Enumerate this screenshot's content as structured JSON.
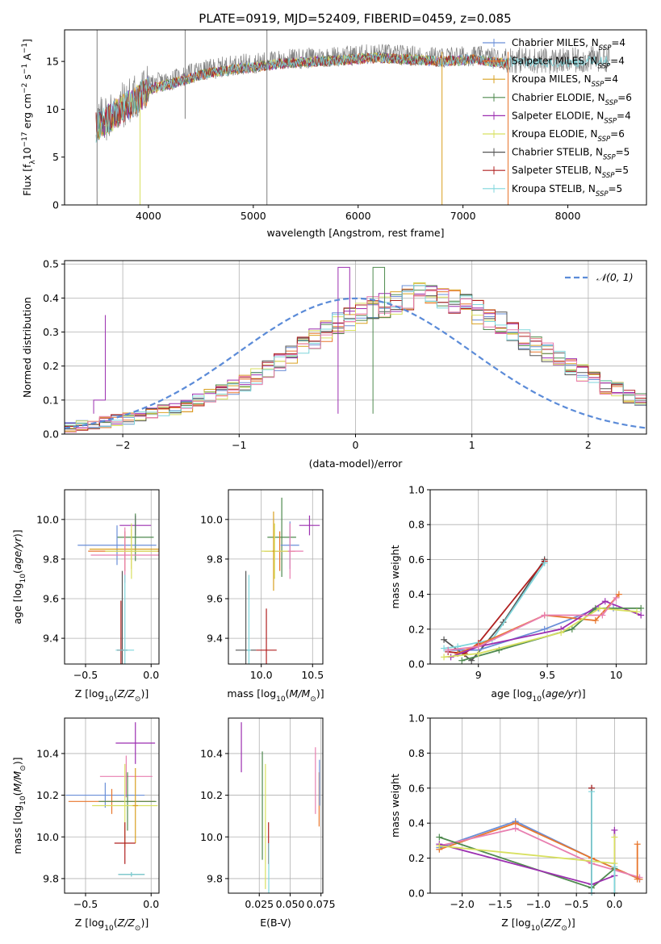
{
  "figure": {
    "title": "PLATE=0919, MJD=52409, FIBERID=0459, z=0.085"
  },
  "chart_data": [
    {
      "id": "spectrum",
      "type": "line",
      "xlabel": "wavelength [Angstrom, rest frame]",
      "ylabel": "Flux [f_λ 10^−17 erg cm^−2 s^−1 A^−1]",
      "xlim": [
        3200,
        8750
      ],
      "ylim": [
        0,
        18.3
      ],
      "xticks": [
        4000,
        5000,
        6000,
        7000,
        8000
      ],
      "yticks": [
        0,
        5,
        10,
        15
      ],
      "grid": false,
      "legend_position": "right",
      "legend": [
        {
          "label": "Chabrier MILES, N_SSP=4",
          "color": "#6a8fd8"
        },
        {
          "label": "Salpeter MILES, N_SSP=4",
          "color": "#e8762c"
        },
        {
          "label": "Kroupa MILES, N_SSP=4",
          "color": "#d9a020"
        },
        {
          "label": "Chabrier ELODIE, N_SSP=6",
          "color": "#4f8a4f"
        },
        {
          "label": "Salpeter ELODIE, N_SSP=4",
          "color": "#9c2fb0"
        },
        {
          "label": "Kroupa ELODIE, N_SSP=6",
          "color": "#d8e060"
        },
        {
          "label": "Chabrier STELIB, N_SSP=5",
          "color": "#555555"
        },
        {
          "label": "Salpeter STELIB, N_SSP=5",
          "color": "#b02020"
        },
        {
          "label": "Kroupa STELIB, N_SSP=5",
          "color": "#7fd6dc"
        }
      ],
      "data_color": "#808080",
      "continuum": [
        {
          "x": 3500,
          "y": 8.5
        },
        {
          "x": 3700,
          "y": 10.0
        },
        {
          "x": 3900,
          "y": 11.5
        },
        {
          "x": 4000,
          "y": 12.5
        },
        {
          "x": 4200,
          "y": 13.0
        },
        {
          "x": 4500,
          "y": 14.0
        },
        {
          "x": 4800,
          "y": 14.6
        },
        {
          "x": 5000,
          "y": 14.8
        },
        {
          "x": 5300,
          "y": 15.2
        },
        {
          "x": 5600,
          "y": 15.4
        },
        {
          "x": 5900,
          "y": 15.6
        },
        {
          "x": 6200,
          "y": 15.8
        },
        {
          "x": 6500,
          "y": 15.6
        },
        {
          "x": 6800,
          "y": 15.4
        },
        {
          "x": 7100,
          "y": 15.6
        },
        {
          "x": 7400,
          "y": 15.2
        },
        {
          "x": 7700,
          "y": 15.1
        },
        {
          "x": 8000,
          "y": 15.0
        },
        {
          "x": 8300,
          "y": 15.3
        }
      ],
      "data_range": [
        3500,
        8400
      ],
      "model_range": [
        3500,
        7430
      ],
      "model_extra_range": [
        7430,
        8400
      ],
      "spikes": [
        {
          "x": 3510,
          "ymin": 0,
          "ymax": 18.3
        },
        {
          "x": 3920,
          "ymin": 0,
          "ymax": 10
        },
        {
          "x": 4350,
          "ymin": 9,
          "ymax": 18.3
        },
        {
          "x": 5130,
          "ymin": 0,
          "ymax": 18.3
        },
        {
          "x": 6800,
          "ymin": 0,
          "ymax": 16
        },
        {
          "x": 7430,
          "ymin": 0,
          "ymax": 16
        }
      ]
    },
    {
      "id": "residuals",
      "type": "step",
      "xlabel": "(data-model)/error",
      "ylabel": "Normed distribution",
      "xlim": [
        -2.5,
        2.5
      ],
      "ylim": [
        0,
        0.51
      ],
      "xticks": [
        -2,
        -1,
        0,
        1,
        2
      ],
      "yticks": [
        0.0,
        0.1,
        0.2,
        0.3,
        0.4,
        0.5
      ],
      "grid": true,
      "legend": [
        {
          "label": "𝒩(0, 1)",
          "color": "#5b8bd8",
          "style": "dashed"
        }
      ],
      "legend_position": "upper right",
      "bin_width": 0.1,
      "bin_start": -2.5,
      "hist_base": [
        0.02,
        0.025,
        0.03,
        0.035,
        0.04,
        0.045,
        0.05,
        0.06,
        0.07,
        0.075,
        0.085,
        0.1,
        0.11,
        0.125,
        0.14,
        0.15,
        0.17,
        0.19,
        0.21,
        0.23,
        0.26,
        0.28,
        0.3,
        0.33,
        0.34,
        0.36,
        0.37,
        0.38,
        0.39,
        0.4,
        0.41,
        0.41,
        0.4,
        0.39,
        0.38,
        0.36,
        0.34,
        0.33,
        0.3,
        0.28,
        0.26,
        0.24,
        0.22,
        0.2,
        0.18,
        0.16,
        0.14,
        0.13,
        0.11,
        0.1
      ],
      "notable_peaks": [
        {
          "x": -2.2,
          "y": 0.1
        },
        {
          "x": 0.2,
          "y": 0.49
        },
        {
          "x": -0.1,
          "y": 0.49
        }
      ]
    },
    {
      "id": "age_vs_Z",
      "type": "errorbar",
      "xlabel": "Z [log10(Z/Z⊙)]",
      "ylabel": "age  [log10(age/yr)]",
      "xlim": [
        -0.66,
        0.06
      ],
      "ylim": [
        9.27,
        10.15
      ],
      "xticks": [
        -0.5,
        0.0
      ],
      "xticklabels": [
        "−0.5",
        "0.0"
      ],
      "yticks": [
        9.4,
        9.6,
        9.8,
        10.0
      ],
      "grid": true,
      "points": [
        {
          "x": -0.12,
          "y": 9.97,
          "xerr": 0.12,
          "yerr": 0.05,
          "color": "#9c2fb0"
        },
        {
          "x": -0.12,
          "y": 9.91,
          "xerr": 0.14,
          "yerr": 0.12,
          "color": "#4f8a4f"
        },
        {
          "x": -0.26,
          "y": 9.87,
          "xerr": 0.3,
          "yerr": 0.1,
          "color": "#6a8fd8"
        },
        {
          "x": -0.15,
          "y": 9.85,
          "xerr": 0.32,
          "yerr": 0.1,
          "color": "#d9a020"
        },
        {
          "x": -0.2,
          "y": 9.84,
          "xerr": 0.28,
          "yerr": 0.1,
          "color": "#e8762c"
        },
        {
          "x": -0.2,
          "y": 9.82,
          "xerr": 0.26,
          "yerr": 0.14,
          "color": "#e87fb0"
        },
        {
          "x": -0.15,
          "y": 9.84,
          "xerr": 0.2,
          "yerr": 0.14,
          "color": "#d8e060"
        },
        {
          "x": -0.22,
          "y": 9.34,
          "xerr": 0.04,
          "yerr": 0.4,
          "color": "#555555"
        },
        {
          "x": -0.23,
          "y": 9.34,
          "xerr": 0.03,
          "yerr": 0.25,
          "color": "#b02020"
        },
        {
          "x": -0.2,
          "y": 9.34,
          "xerr": 0.07,
          "yerr": 0.38,
          "color": "#7fd6dc"
        }
      ]
    },
    {
      "id": "age_vs_mass",
      "type": "errorbar",
      "xlabel": "mass [log10(M/M⊙)]",
      "ylabel": "",
      "xlim": [
        9.68,
        10.6
      ],
      "ylim": [
        9.27,
        10.15
      ],
      "xticks": [
        10.0,
        10.5
      ],
      "xticklabels": [
        "10.0",
        "10.5"
      ],
      "yticks": [
        9.4,
        9.6,
        9.8,
        10.0
      ],
      "grid": true,
      "points": [
        {
          "x": 10.47,
          "y": 9.97,
          "xerr": 0.1,
          "yerr": 0.05,
          "color": "#9c2fb0"
        },
        {
          "x": 10.2,
          "y": 9.91,
          "xerr": 0.14,
          "yerr": 0.2,
          "color": "#4f8a4f"
        },
        {
          "x": 10.28,
          "y": 9.87,
          "xerr": 0.09,
          "yerr": 0.12,
          "color": "#6a8fd8"
        },
        {
          "x": 10.18,
          "y": 9.84,
          "xerr": 0.15,
          "yerr": 0.1,
          "color": "#e8762c"
        },
        {
          "x": 10.28,
          "y": 9.84,
          "xerr": 0.13,
          "yerr": 0.14,
          "color": "#e87fb0"
        },
        {
          "x": 10.13,
          "y": 9.84,
          "xerr": 0.13,
          "yerr": 0.14,
          "color": "#d8e060"
        },
        {
          "x": 10.12,
          "y": 9.84,
          "xerr": 0.01,
          "yerr": 0.2,
          "color": "#d9a020"
        },
        {
          "x": 9.85,
          "y": 9.34,
          "xerr": 0.1,
          "yerr": 0.4,
          "color": "#555555"
        },
        {
          "x": 10.05,
          "y": 9.34,
          "xerr": 0.1,
          "yerr": 0.21,
          "color": "#b02020"
        },
        {
          "x": 9.88,
          "y": 9.34,
          "xerr": 0.02,
          "yerr": 0.38,
          "color": "#7fd6dc"
        }
      ]
    },
    {
      "id": "mass_weight_vs_age",
      "type": "line",
      "xlabel": "age  [log10(age/yr)]",
      "ylabel": "mass weight",
      "xlim": [
        8.65,
        10.22
      ],
      "ylim": [
        0,
        1.0
      ],
      "xticks": [
        9.0,
        9.5,
        10.0
      ],
      "yticks": [
        0.0,
        0.2,
        0.4,
        0.6,
        0.8,
        1.0
      ],
      "grid": true,
      "series": [
        {
          "color": "#555555",
          "x": [
            8.75,
            8.85,
            8.95,
            9.18,
            9.48
          ],
          "y": [
            0.14,
            0.08,
            0.02,
            0.24,
            0.6
          ]
        },
        {
          "color": "#b02020",
          "x": [
            8.78,
            8.9,
            9.0,
            9.48
          ],
          "y": [
            0.07,
            0.06,
            0.12,
            0.59
          ]
        },
        {
          "color": "#7fd6dc",
          "x": [
            8.75,
            8.85,
            9.1,
            9.48
          ],
          "y": [
            0.09,
            0.1,
            0.14,
            0.58
          ]
        },
        {
          "color": "#6a8fd8",
          "x": [
            8.78,
            9.0,
            9.48,
            9.87,
            9.98
          ],
          "y": [
            0.08,
            0.08,
            0.2,
            0.32,
            0.32
          ]
        },
        {
          "color": "#e8762c",
          "x": [
            8.85,
            9.0,
            9.48,
            9.85,
            10.02
          ],
          "y": [
            0.06,
            0.11,
            0.28,
            0.25,
            0.4
          ]
        },
        {
          "color": "#9c2fb0",
          "x": [
            8.8,
            9.0,
            9.6,
            9.92,
            10.18
          ],
          "y": [
            0.04,
            0.1,
            0.2,
            0.36,
            0.28
          ]
        },
        {
          "color": "#4f8a4f",
          "x": [
            8.88,
            9.15,
            9.68,
            9.85,
            10.18
          ],
          "y": [
            0.02,
            0.08,
            0.2,
            0.32,
            0.32
          ]
        },
        {
          "color": "#d8e060",
          "x": [
            8.75,
            9.0,
            9.6,
            9.88,
            10.15
          ],
          "y": [
            0.04,
            0.06,
            0.18,
            0.32,
            0.3
          ]
        },
        {
          "color": "#e87fb0",
          "x": [
            8.78,
            9.0,
            9.48,
            9.9,
            10.0
          ],
          "y": [
            0.08,
            0.1,
            0.28,
            0.28,
            0.38
          ]
        }
      ]
    },
    {
      "id": "mass_vs_Z",
      "type": "errorbar",
      "xlabel": "Z [log10(Z/Z⊙)]",
      "ylabel": "mass [log10(M/M⊙)]",
      "xlim": [
        -0.66,
        0.06
      ],
      "ylim": [
        9.73,
        10.57
      ],
      "xticks": [
        -0.5,
        0.0
      ],
      "xticklabels": [
        "−0.5",
        "0.0"
      ],
      "yticks": [
        9.8,
        10.0,
        10.2,
        10.4
      ],
      "grid": true,
      "points": [
        {
          "x": -0.12,
          "y": 10.45,
          "xerr": 0.15,
          "yerr": 0.1,
          "color": "#9c2fb0"
        },
        {
          "x": -0.19,
          "y": 10.29,
          "xerr": 0.2,
          "yerr": 0.1,
          "color": "#e87fb0"
        },
        {
          "x": -0.35,
          "y": 10.2,
          "xerr": 0.3,
          "yerr": 0.06,
          "color": "#6a8fd8"
        },
        {
          "x": -0.3,
          "y": 10.17,
          "xerr": 0.33,
          "yerr": 0.06,
          "color": "#e8762c"
        },
        {
          "x": -0.18,
          "y": 10.17,
          "xerr": 0.22,
          "yerr": 0.14,
          "color": "#4f8a4f"
        },
        {
          "x": -0.2,
          "y": 10.15,
          "xerr": 0.25,
          "yerr": 0.2,
          "color": "#d8e060"
        },
        {
          "x": -0.12,
          "y": 10.15,
          "xerr": 0.02,
          "yerr": 0.18,
          "color": "#d9a020"
        },
        {
          "x": -0.2,
          "y": 9.97,
          "xerr": 0.08,
          "yerr": 0.1,
          "color": "#b02020"
        },
        {
          "x": -0.15,
          "y": 9.82,
          "xerr": 0.1,
          "yerr": 0.01,
          "color": "#555555"
        },
        {
          "x": -0.15,
          "y": 9.82,
          "xerr": 0.1,
          "yerr": 0.01,
          "color": "#7fd6dc"
        }
      ]
    },
    {
      "id": "mass_vs_EBV",
      "type": "errorbar",
      "xlabel": "E(B-V)",
      "ylabel": "",
      "xlim": [
        0.0,
        0.0765
      ],
      "ylim": [
        9.73,
        10.57
      ],
      "xticks": [
        0.025,
        0.05,
        0.075
      ],
      "xticklabels": [
        "0.025",
        "0.050",
        "0.075"
      ],
      "yticks": [
        9.8,
        10.0,
        10.2,
        10.4
      ],
      "grid": true,
      "points": [
        {
          "x": 0.0105,
          "y": 10.43,
          "xerr": 0,
          "yerr": 0.12,
          "color": "#9c2fb0"
        },
        {
          "x": 0.0275,
          "y": 10.15,
          "xerr": 0,
          "yerr": 0.26,
          "color": "#4f8a4f"
        },
        {
          "x": 0.03,
          "y": 10.05,
          "xerr": 0,
          "yerr": 0.3,
          "color": "#d8e060"
        },
        {
          "x": 0.0325,
          "y": 9.97,
          "xerr": 0,
          "yerr": 0.1,
          "color": "#b02020"
        },
        {
          "x": 0.0327,
          "y": 9.85,
          "xerr": 0,
          "yerr": 0.12,
          "color": "#7fd6dc"
        },
        {
          "x": 0.0705,
          "y": 10.27,
          "xerr": 0,
          "yerr": 0.16,
          "color": "#e87fb0"
        },
        {
          "x": 0.0735,
          "y": 10.18,
          "xerr": 0,
          "yerr": 0.13,
          "color": "#e8762c"
        },
        {
          "x": 0.0738,
          "y": 10.26,
          "xerr": 0,
          "yerr": 0.11,
          "color": "#6a8fd8"
        }
      ]
    },
    {
      "id": "mass_weight_vs_Z",
      "type": "line",
      "xlabel": "Z [log10(Z/Z⊙)]",
      "ylabel": "mass weight",
      "xlim": [
        -2.42,
        0.42
      ],
      "ylim": [
        0,
        1.0
      ],
      "xticks": [
        -2.0,
        -1.5,
        -1.0,
        -0.5,
        0.0
      ],
      "xticklabels": [
        "−2.0",
        "−1.5",
        "−1.0",
        "−0.5",
        "0.0"
      ],
      "yticks": [
        0.0,
        0.2,
        0.4,
        0.6,
        0.8,
        1.0
      ],
      "grid": true,
      "series": [
        {
          "color": "#6a8fd8",
          "x": [
            -2.3,
            -1.3,
            -0.3,
            0.33
          ],
          "y": [
            0.26,
            0.41,
            0.2,
            0.08
          ]
        },
        {
          "color": "#e8762c",
          "x": [
            -2.3,
            -1.3,
            -0.3,
            0.33
          ],
          "y": [
            0.25,
            0.4,
            0.2,
            0.08
          ]
        },
        {
          "color": "#e87fb0",
          "x": [
            -2.3,
            -1.3,
            -0.3,
            0.33
          ],
          "y": [
            0.27,
            0.37,
            0.17,
            0.09
          ]
        },
        {
          "color": "#4f8a4f",
          "x": [
            -2.3,
            -0.3,
            0.0
          ],
          "y": [
            0.32,
            0.03,
            0.14
          ]
        },
        {
          "color": "#9c2fb0",
          "x": [
            -2.3,
            -0.3,
            0.0
          ],
          "y": [
            0.28,
            0.05,
            0.1
          ]
        },
        {
          "color": "#d8e060",
          "x": [
            -2.3,
            0.0
          ],
          "y": [
            0.27,
            0.17
          ]
        },
        {
          "color": "#555555",
          "x": [
            -0.3,
            -0.3
          ],
          "y": [
            0.0,
            0.6
          ]
        },
        {
          "color": "#b02020",
          "x": [
            -0.3,
            -0.3
          ],
          "y": [
            0.0,
            0.6
          ]
        },
        {
          "color": "#7fd6dc",
          "x": [
            -0.3,
            -0.3
          ],
          "y": [
            0.0,
            0.58
          ]
        },
        {
          "color": "#9c2fb0",
          "x": [
            0.0,
            0.0
          ],
          "y": [
            0.0,
            0.36
          ]
        },
        {
          "color": "#d8e060",
          "x": [
            0.0,
            0.0
          ],
          "y": [
            0.0,
            0.32
          ]
        },
        {
          "color": "#e8762c",
          "x": [
            0.3,
            0.3
          ],
          "y": [
            0.08,
            0.28
          ]
        },
        {
          "color": "#7fd6dc",
          "x": [
            0.0,
            0.0
          ],
          "y": [
            0.0,
            0.15
          ]
        }
      ]
    }
  ]
}
